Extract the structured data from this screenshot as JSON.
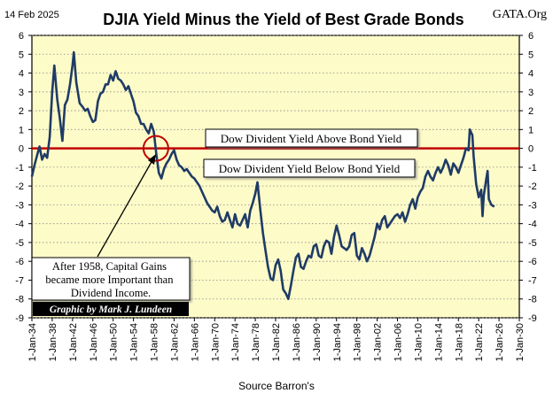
{
  "header": {
    "date": "14 Feb 2025",
    "title": "DJIA Yield Minus the Yield of Best Grade Bonds",
    "brand": "GATA.Org"
  },
  "source": "Source Barron's",
  "credit": "Graphic by Mark J. Lundeen",
  "colors": {
    "plot_bg": "#fdfbc8",
    "series": "#1f3b66",
    "zero_line": "#c00000",
    "grid": "#8a8a8a",
    "credit_bg": "#000000",
    "credit_text": "#ffffff"
  },
  "chart_data": {
    "type": "line",
    "title": "DJIA Yield Minus the Yield of Best Grade Bonds",
    "xlabel": "Source Barron's",
    "ylabel": "",
    "xlim": [
      "1934-01",
      "2030-01"
    ],
    "ylim": [
      -9,
      6
    ],
    "x_ticks": [
      "1-Jan-34",
      "1-Jan-38",
      "1-Jan-42",
      "1-Jan-46",
      "1-Jan-50",
      "1-Jan-54",
      "1-Jan-58",
      "1-Jan-62",
      "1-Jan-66",
      "1-Jan-70",
      "1-Jan-74",
      "1-Jan-78",
      "1-Jan-82",
      "1-Jan-86",
      "1-Jan-90",
      "1-Jan-94",
      "1-Jan-98",
      "1-Jan-02",
      "1-Jan-06",
      "1-Jan-10",
      "1-Jan-14",
      "1-Jan-18",
      "1-Jan-22",
      "1-Jan-26",
      "1-Jan-30"
    ],
    "y_ticks": [
      6,
      5,
      4,
      3,
      2,
      1,
      0,
      -1,
      -2,
      -3,
      -4,
      -5,
      -6,
      -7,
      -8,
      -9
    ],
    "grid": "horizontal dotted",
    "reference_line": {
      "y": 0
    },
    "annotations": [
      {
        "text": "Dow Divident Yield Above Bond Yield",
        "x": "1962-01",
        "y": 0.8
      },
      {
        "text": "Dow Divident Yield Below Bond Yield",
        "x": "1962-01",
        "y": -0.8
      },
      {
        "text": "After 1958, Capital Gains became more Important than Dividend Income.",
        "x": "1945-01",
        "y": -6.6
      }
    ],
    "circle_marker": {
      "x": "1958-06",
      "y": 0
    },
    "series": [
      {
        "values": [
          [
            "1934-01",
            -1.5
          ],
          [
            "1934-07",
            -0.9
          ],
          [
            "1935-01",
            -0.4
          ],
          [
            "1935-07",
            0.1
          ],
          [
            "1936-01",
            -0.6
          ],
          [
            "1936-07",
            -0.3
          ],
          [
            "1937-01",
            -0.5
          ],
          [
            "1937-07",
            0.6
          ],
          [
            "1938-01",
            3.0
          ],
          [
            "1938-06",
            4.4
          ],
          [
            "1939-01",
            2.6
          ],
          [
            "1939-07",
            1.6
          ],
          [
            "1940-01",
            0.4
          ],
          [
            "1940-07",
            2.3
          ],
          [
            "1941-01",
            2.6
          ],
          [
            "1941-07",
            3.4
          ],
          [
            "1942-01",
            4.4
          ],
          [
            "1942-04",
            5.1
          ],
          [
            "1942-10",
            3.5
          ],
          [
            "1943-06",
            2.4
          ],
          [
            "1944-01",
            2.2
          ],
          [
            "1944-07",
            2.0
          ],
          [
            "1945-01",
            2.1
          ],
          [
            "1945-07",
            1.7
          ],
          [
            "1946-01",
            1.4
          ],
          [
            "1946-07",
            1.5
          ],
          [
            "1947-01",
            2.5
          ],
          [
            "1947-07",
            2.9
          ],
          [
            "1948-01",
            3.0
          ],
          [
            "1948-07",
            3.4
          ],
          [
            "1949-01",
            3.4
          ],
          [
            "1949-07",
            3.9
          ],
          [
            "1950-01",
            3.6
          ],
          [
            "1950-07",
            4.1
          ],
          [
            "1951-01",
            3.7
          ],
          [
            "1951-07",
            3.6
          ],
          [
            "1952-01",
            3.4
          ],
          [
            "1952-07",
            3.1
          ],
          [
            "1953-01",
            3.3
          ],
          [
            "1953-07",
            2.9
          ],
          [
            "1954-01",
            2.5
          ],
          [
            "1954-07",
            1.9
          ],
          [
            "1955-01",
            1.7
          ],
          [
            "1955-07",
            1.3
          ],
          [
            "1956-01",
            1.3
          ],
          [
            "1956-07",
            1.0
          ],
          [
            "1957-01",
            0.8
          ],
          [
            "1957-07",
            1.3
          ],
          [
            "1958-01",
            0.9
          ],
          [
            "1958-07",
            -0.3
          ],
          [
            "1959-01",
            -1.3
          ],
          [
            "1959-07",
            -1.6
          ],
          [
            "1960-01",
            -1.1
          ],
          [
            "1960-07",
            -0.8
          ],
          [
            "1961-01",
            -0.6
          ],
          [
            "1961-07",
            -0.3
          ],
          [
            "1962-01",
            -0.1
          ],
          [
            "1962-07",
            -0.6
          ],
          [
            "1963-01",
            -0.9
          ],
          [
            "1963-07",
            -1.0
          ],
          [
            "1964-01",
            -1.2
          ],
          [
            "1964-07",
            -1.1
          ],
          [
            "1965-01",
            -1.3
          ],
          [
            "1965-07",
            -1.5
          ],
          [
            "1966-01",
            -1.6
          ],
          [
            "1966-07",
            -1.8
          ],
          [
            "1967-01",
            -2.0
          ],
          [
            "1967-07",
            -2.3
          ],
          [
            "1968-01",
            -2.6
          ],
          [
            "1968-07",
            -2.9
          ],
          [
            "1969-01",
            -3.1
          ],
          [
            "1969-07",
            -3.3
          ],
          [
            "1970-01",
            -3.4
          ],
          [
            "1970-07",
            -3.1
          ],
          [
            "1971-01",
            -3.6
          ],
          [
            "1971-07",
            -3.9
          ],
          [
            "1972-01",
            -3.8
          ],
          [
            "1972-07",
            -3.4
          ],
          [
            "1973-01",
            -3.8
          ],
          [
            "1973-07",
            -4.2
          ],
          [
            "1974-01",
            -3.5
          ],
          [
            "1974-07",
            -4.0
          ],
          [
            "1975-01",
            -4.1
          ],
          [
            "1975-07",
            -3.8
          ],
          [
            "1976-01",
            -3.5
          ],
          [
            "1976-07",
            -4.2
          ],
          [
            "1977-01",
            -3.3
          ],
          [
            "1977-07",
            -2.9
          ],
          [
            "1978-01",
            -2.4
          ],
          [
            "1978-06",
            -1.8
          ],
          [
            "1979-01",
            -3.3
          ],
          [
            "1979-07",
            -4.5
          ],
          [
            "1980-01",
            -5.4
          ],
          [
            "1980-07",
            -6.3
          ],
          [
            "1981-01",
            -6.9
          ],
          [
            "1981-07",
            -7.0
          ],
          [
            "1982-01",
            -6.2
          ],
          [
            "1982-07",
            -5.9
          ],
          [
            "1983-01",
            -6.5
          ],
          [
            "1983-07",
            -7.5
          ],
          [
            "1984-01",
            -7.7
          ],
          [
            "1984-07",
            -8.0
          ],
          [
            "1985-01",
            -7.3
          ],
          [
            "1985-07",
            -6.5
          ],
          [
            "1986-01",
            -5.8
          ],
          [
            "1986-07",
            -5.6
          ],
          [
            "1987-01",
            -6.3
          ],
          [
            "1987-07",
            -6.4
          ],
          [
            "1988-01",
            -6.0
          ],
          [
            "1988-07",
            -5.7
          ],
          [
            "1989-01",
            -5.8
          ],
          [
            "1989-07",
            -5.2
          ],
          [
            "1990-01",
            -5.1
          ],
          [
            "1990-07",
            -5.7
          ],
          [
            "1991-01",
            -5.8
          ],
          [
            "1991-07",
            -5.2
          ],
          [
            "1992-01",
            -4.9
          ],
          [
            "1992-07",
            -5.0
          ],
          [
            "1993-01",
            -5.6
          ],
          [
            "1993-07",
            -4.7
          ],
          [
            "1994-01",
            -4.1
          ],
          [
            "1994-07",
            -4.6
          ],
          [
            "1995-01",
            -5.2
          ],
          [
            "1995-07",
            -5.3
          ],
          [
            "1996-01",
            -5.4
          ],
          [
            "1996-07",
            -5.2
          ],
          [
            "1997-01",
            -4.6
          ],
          [
            "1997-07",
            -4.5
          ],
          [
            "1998-01",
            -5.7
          ],
          [
            "1998-07",
            -5.9
          ],
          [
            "1999-01",
            -5.3
          ],
          [
            "1999-07",
            -5.6
          ],
          [
            "2000-01",
            -6.0
          ],
          [
            "2000-07",
            -5.7
          ],
          [
            "2001-01",
            -5.2
          ],
          [
            "2001-07",
            -4.7
          ],
          [
            "2002-01",
            -4.0
          ],
          [
            "2002-07",
            -4.3
          ],
          [
            "2003-01",
            -3.8
          ],
          [
            "2003-07",
            -3.6
          ],
          [
            "2004-01",
            -4.2
          ],
          [
            "2004-07",
            -4.0
          ],
          [
            "2005-01",
            -3.8
          ],
          [
            "2005-07",
            -3.6
          ],
          [
            "2006-01",
            -3.5
          ],
          [
            "2006-07",
            -3.7
          ],
          [
            "2007-01",
            -3.4
          ],
          [
            "2007-07",
            -3.9
          ],
          [
            "2008-01",
            -3.5
          ],
          [
            "2008-07",
            -3.0
          ],
          [
            "2009-01",
            -2.7
          ],
          [
            "2009-07",
            -3.2
          ],
          [
            "2010-01",
            -2.6
          ],
          [
            "2010-07",
            -2.3
          ],
          [
            "2011-01",
            -2.1
          ],
          [
            "2011-07",
            -1.5
          ],
          [
            "2012-01",
            -1.2
          ],
          [
            "2012-07",
            -1.5
          ],
          [
            "2013-01",
            -1.7
          ],
          [
            "2013-07",
            -1.3
          ],
          [
            "2014-01",
            -1.0
          ],
          [
            "2014-07",
            -1.3
          ],
          [
            "2015-01",
            -1.0
          ],
          [
            "2015-07",
            -0.6
          ],
          [
            "2016-01",
            -0.9
          ],
          [
            "2016-07",
            -1.4
          ],
          [
            "2017-01",
            -0.8
          ],
          [
            "2017-07",
            -1.0
          ],
          [
            "2018-01",
            -1.3
          ],
          [
            "2018-07",
            -0.9
          ],
          [
            "2019-01",
            -0.5
          ],
          [
            "2019-07",
            0.0
          ],
          [
            "2020-01",
            -0.1
          ],
          [
            "2020-04",
            1.0
          ],
          [
            "2020-10",
            0.7
          ],
          [
            "2021-01",
            -0.4
          ],
          [
            "2021-07",
            -1.9
          ],
          [
            "2022-01",
            -2.6
          ],
          [
            "2022-07",
            -2.2
          ],
          [
            "2022-10",
            -3.6
          ],
          [
            "2023-01",
            -2.5
          ],
          [
            "2023-07",
            -1.6
          ],
          [
            "2023-10",
            -1.2
          ],
          [
            "2024-01",
            -2.7
          ],
          [
            "2024-07",
            -3.0
          ],
          [
            "2025-02",
            -3.1
          ]
        ]
      }
    ]
  }
}
